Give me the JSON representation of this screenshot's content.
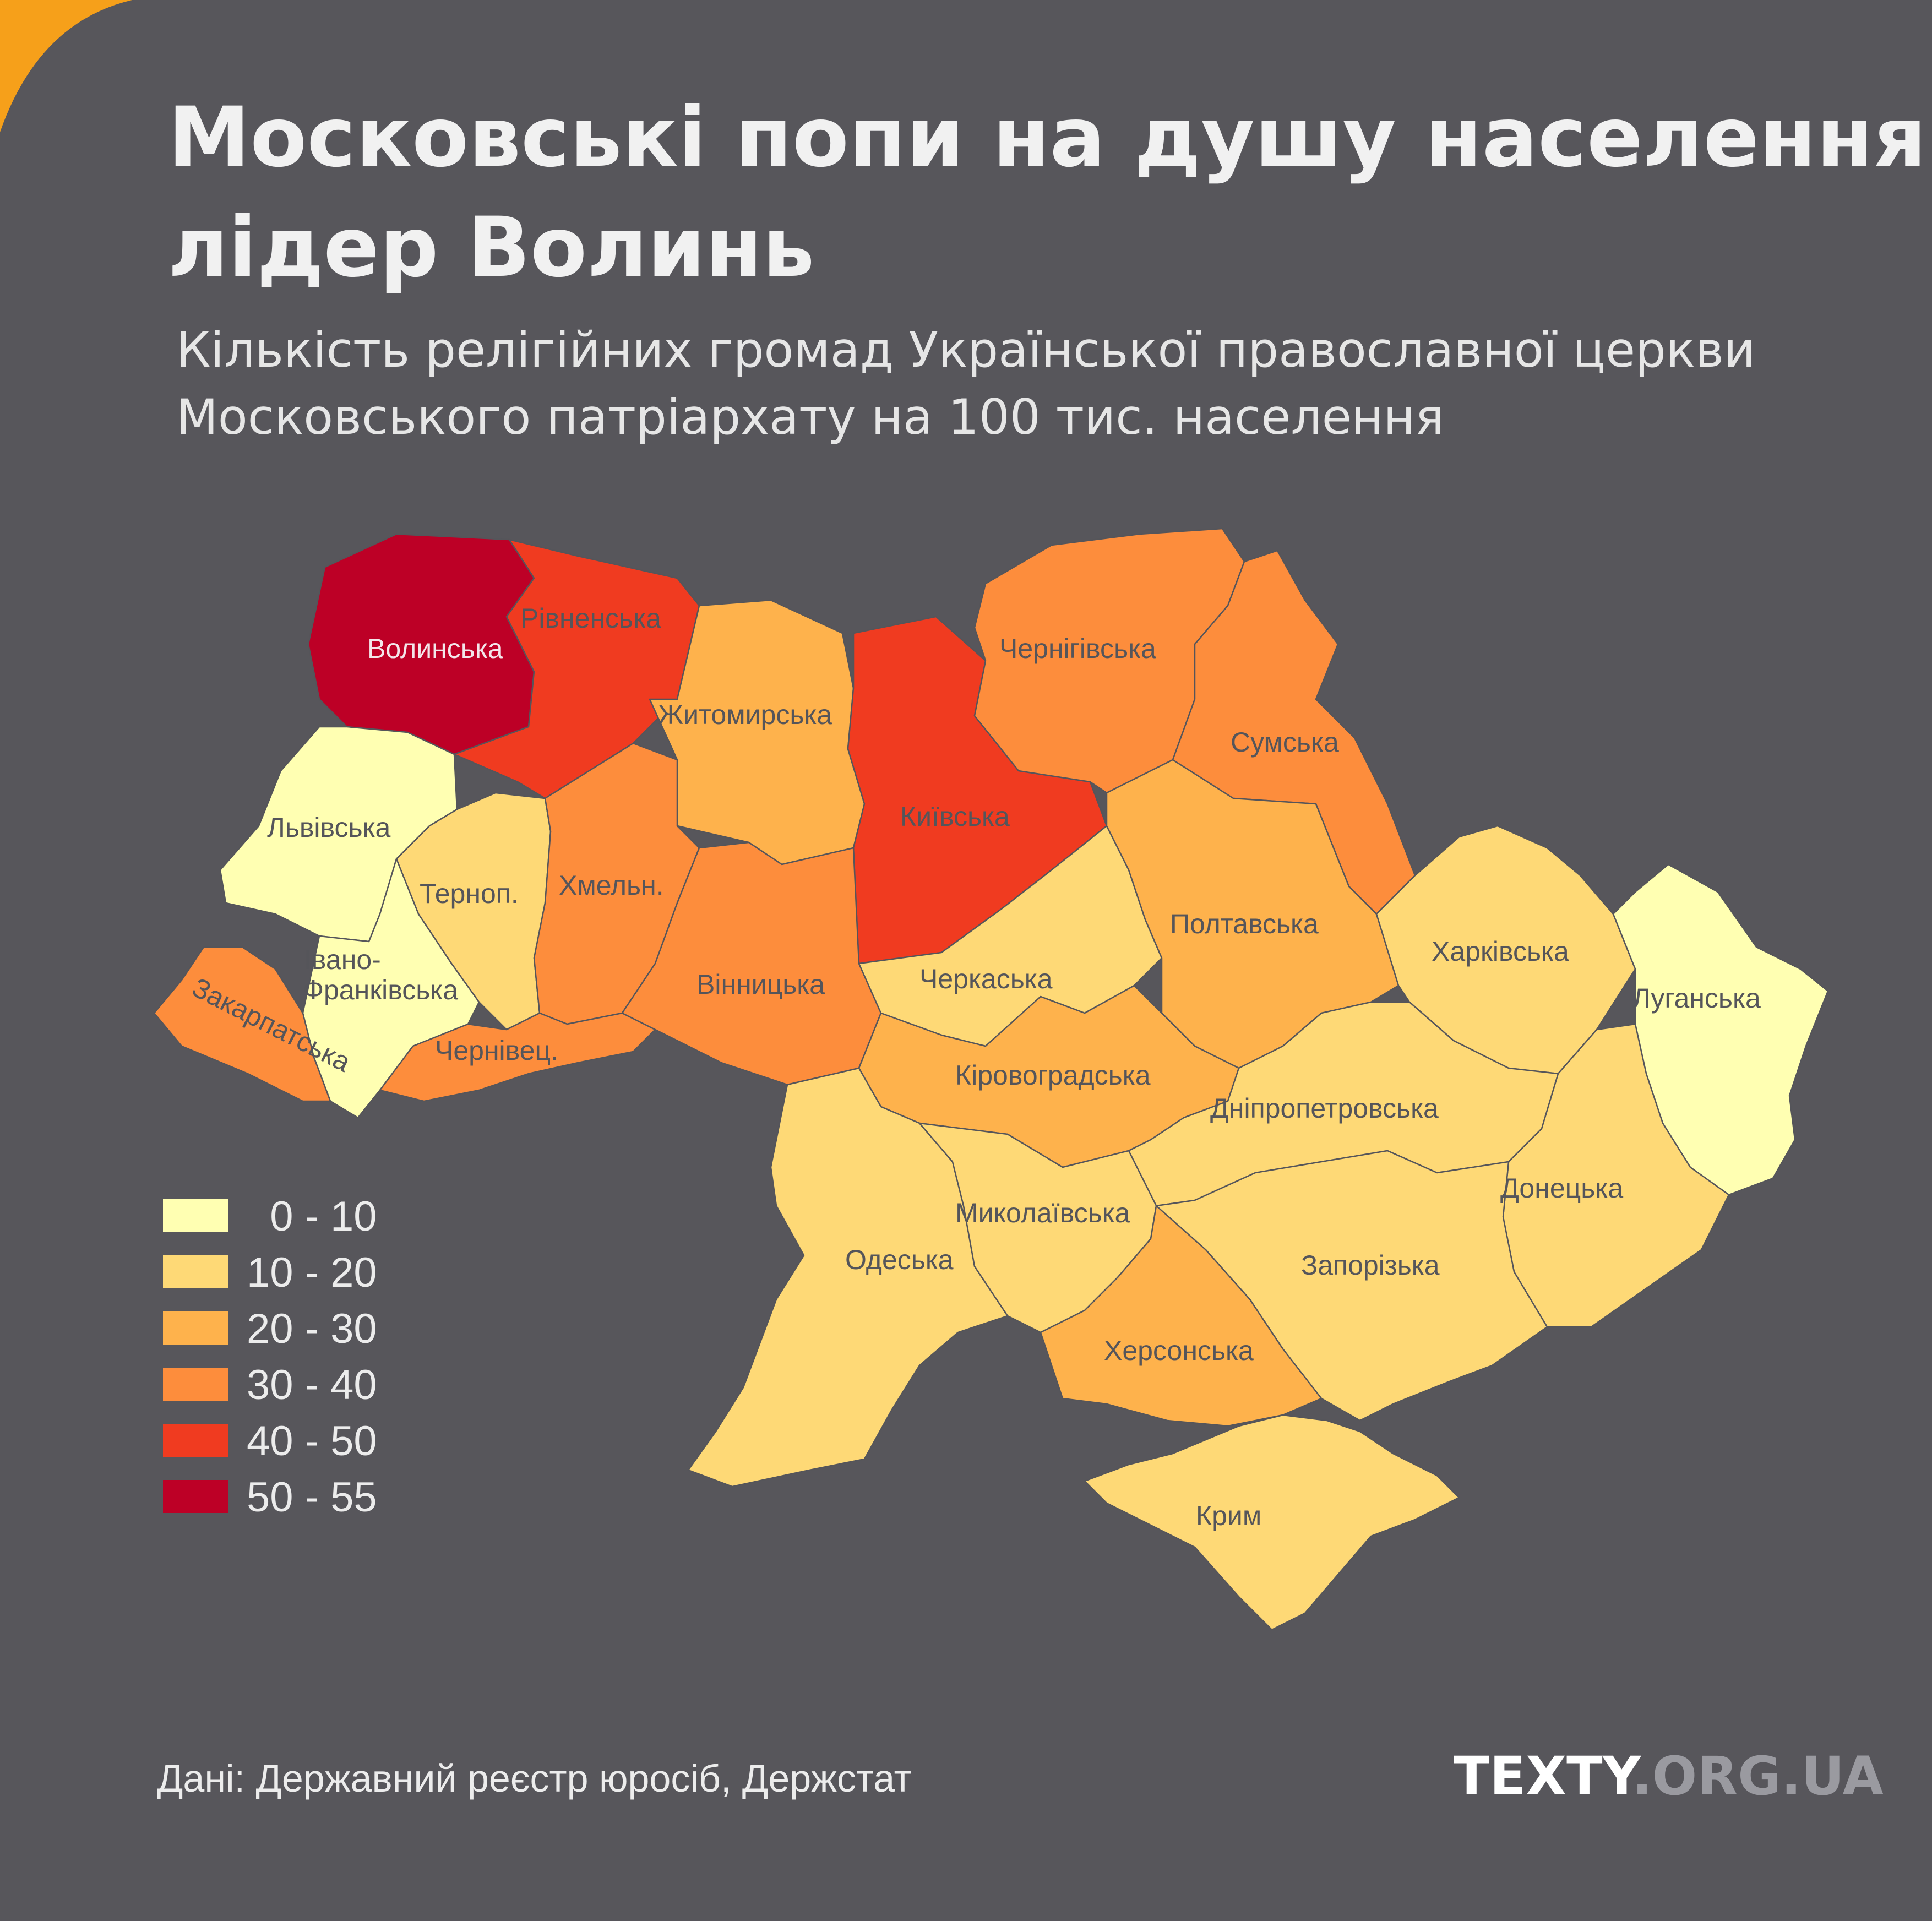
{
  "header": {
    "title_line1": "Московські попи на душу населення:",
    "title_line2": "лідер Волинь",
    "subtitle_line1": "Кількість релігійних громад Української православної церкви",
    "subtitle_line2": "Московського патріархату на 100 тис. населення"
  },
  "colors": {
    "background": "#57565b",
    "accent": "#f6a01a",
    "bin_0_10": "#ffffb2",
    "bin_10_20": "#fed976",
    "bin_20_30": "#feb24c",
    "bin_30_40": "#fd8d3c",
    "bin_40_50": "#f03b20",
    "bin_50_55": "#bd0026"
  },
  "legend": [
    {
      "label": "  0 - 10",
      "color": "#ffffb2"
    },
    {
      "label": "10 - 20",
      "color": "#fed976"
    },
    {
      "label": "20 - 30",
      "color": "#feb24c"
    },
    {
      "label": "30 - 40",
      "color": "#fd8d3c"
    },
    {
      "label": "40 - 50",
      "color": "#f03b20"
    },
    {
      "label": "50 - 55",
      "color": "#bd0026"
    }
  ],
  "regions": [
    {
      "name": "Волинська",
      "bin": "50 - 55"
    },
    {
      "name": "Рівненська",
      "bin": "40 - 50"
    },
    {
      "name": "Київська",
      "bin": "40 - 50"
    },
    {
      "name": "Житомирська",
      "bin": "20 - 30"
    },
    {
      "name": "Чернігівська",
      "bin": "30 - 40"
    },
    {
      "name": "Сумська",
      "bin": "30 - 40"
    },
    {
      "name": "Львівська",
      "bin": "0 - 10"
    },
    {
      "name": "Терноп.",
      "bin": "10 - 20"
    },
    {
      "name": "Хмельн.",
      "bin": "30 - 40"
    },
    {
      "name": "Івано-",
      "bin": "0 - 10"
    },
    {
      "name": "Франківська",
      "bin": "0 - 10"
    },
    {
      "name": "Закарпатська",
      "bin": "30 - 40"
    },
    {
      "name": "Чернівец.",
      "bin": "30 - 40"
    },
    {
      "name": "Вінницька",
      "bin": "30 - 40"
    },
    {
      "name": "Черкаська",
      "bin": "10 - 20"
    },
    {
      "name": "Полтавська",
      "bin": "20 - 30"
    },
    {
      "name": "Харківська",
      "bin": "10 - 20"
    },
    {
      "name": "Луганська",
      "bin": "0 - 10"
    },
    {
      "name": "Кіровоградська",
      "bin": "20 - 30"
    },
    {
      "name": "Дніпропетровська",
      "bin": "10 - 20"
    },
    {
      "name": "Донецька",
      "bin": "10 - 20"
    },
    {
      "name": "Миколаївська",
      "bin": "10 - 20"
    },
    {
      "name": "Одеська",
      "bin": "10 - 20"
    },
    {
      "name": "Запорізька",
      "bin": "10 - 20"
    },
    {
      "name": "Херсонська",
      "bin": "20 - 30"
    },
    {
      "name": "Крим",
      "bin": "10 - 20"
    }
  ],
  "footer": {
    "source": "Дані: Державний реєстр юросіб, Держстат",
    "brand_main": "TEXTY",
    "brand_tail": ".ORG.UA"
  }
}
